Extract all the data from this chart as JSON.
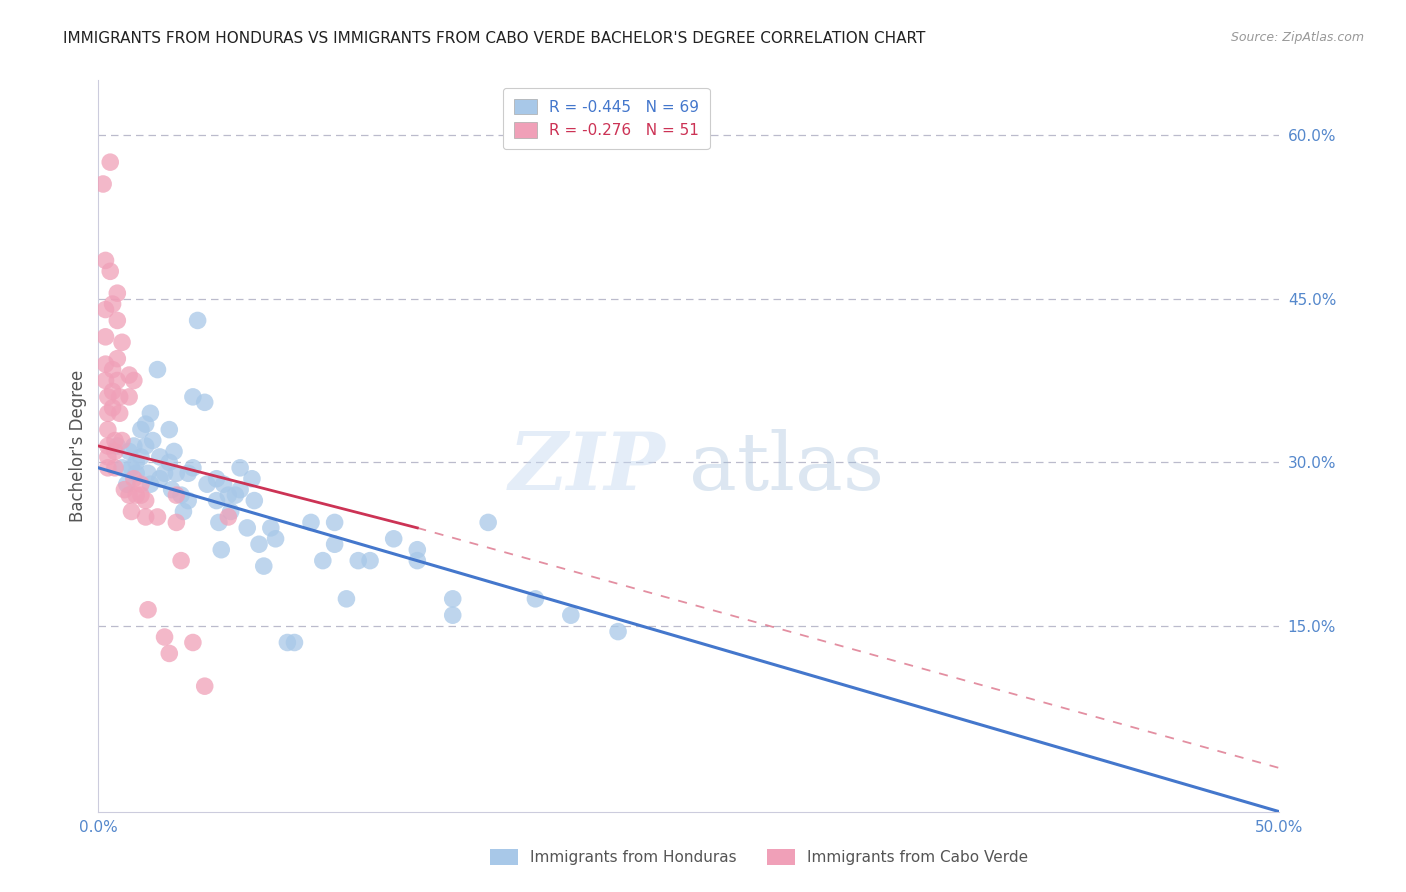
{
  "title": "IMMIGRANTS FROM HONDURAS VS IMMIGRANTS FROM CABO VERDE BACHELOR'S DEGREE CORRELATION CHART",
  "source_text": "Source: ZipAtlas.com",
  "ylabel": "Bachelor's Degree",
  "right_yticks": [
    "60.0%",
    "45.0%",
    "30.0%",
    "15.0%"
  ],
  "right_ytick_vals": [
    0.6,
    0.45,
    0.3,
    0.15
  ],
  "xlim": [
    0.0,
    0.5
  ],
  "ylim": [
    -0.02,
    0.65
  ],
  "legend_blue_r": "-0.445",
  "legend_blue_n": "69",
  "legend_pink_r": "-0.276",
  "legend_pink_n": "51",
  "blue_color": "#A8C8E8",
  "pink_color": "#F0A0B8",
  "blue_line_color": "#4477CC",
  "pink_line_color": "#CC3355",
  "blue_line": {
    "x0": 0.0,
    "y0": 0.295,
    "x1": 0.5,
    "y1": -0.02
  },
  "pink_line_solid": {
    "x0": 0.0,
    "y0": 0.315,
    "x1": 0.135,
    "y1": 0.24
  },
  "pink_line_dash": {
    "x0": 0.135,
    "y0": 0.24,
    "x1": 0.5,
    "y1": 0.02
  },
  "blue_scatter": [
    [
      0.008,
      0.315
    ],
    [
      0.01,
      0.295
    ],
    [
      0.012,
      0.28
    ],
    [
      0.013,
      0.31
    ],
    [
      0.014,
      0.295
    ],
    [
      0.015,
      0.315
    ],
    [
      0.016,
      0.3
    ],
    [
      0.016,
      0.29
    ],
    [
      0.018,
      0.33
    ],
    [
      0.018,
      0.305
    ],
    [
      0.02,
      0.335
    ],
    [
      0.02,
      0.315
    ],
    [
      0.021,
      0.29
    ],
    [
      0.022,
      0.28
    ],
    [
      0.022,
      0.345
    ],
    [
      0.023,
      0.32
    ],
    [
      0.025,
      0.385
    ],
    [
      0.026,
      0.305
    ],
    [
      0.026,
      0.285
    ],
    [
      0.028,
      0.29
    ],
    [
      0.03,
      0.33
    ],
    [
      0.03,
      0.3
    ],
    [
      0.031,
      0.275
    ],
    [
      0.032,
      0.31
    ],
    [
      0.033,
      0.29
    ],
    [
      0.035,
      0.27
    ],
    [
      0.036,
      0.255
    ],
    [
      0.038,
      0.29
    ],
    [
      0.038,
      0.265
    ],
    [
      0.04,
      0.36
    ],
    [
      0.04,
      0.295
    ],
    [
      0.042,
      0.43
    ],
    [
      0.045,
      0.355
    ],
    [
      0.046,
      0.28
    ],
    [
      0.05,
      0.285
    ],
    [
      0.05,
      0.265
    ],
    [
      0.051,
      0.245
    ],
    [
      0.052,
      0.22
    ],
    [
      0.053,
      0.28
    ],
    [
      0.055,
      0.27
    ],
    [
      0.056,
      0.255
    ],
    [
      0.058,
      0.27
    ],
    [
      0.06,
      0.295
    ],
    [
      0.06,
      0.275
    ],
    [
      0.063,
      0.24
    ],
    [
      0.065,
      0.285
    ],
    [
      0.066,
      0.265
    ],
    [
      0.068,
      0.225
    ],
    [
      0.07,
      0.205
    ],
    [
      0.073,
      0.24
    ],
    [
      0.075,
      0.23
    ],
    [
      0.08,
      0.135
    ],
    [
      0.083,
      0.135
    ],
    [
      0.09,
      0.245
    ],
    [
      0.095,
      0.21
    ],
    [
      0.1,
      0.245
    ],
    [
      0.1,
      0.225
    ],
    [
      0.105,
      0.175
    ],
    [
      0.11,
      0.21
    ],
    [
      0.115,
      0.21
    ],
    [
      0.125,
      0.23
    ],
    [
      0.135,
      0.22
    ],
    [
      0.135,
      0.21
    ],
    [
      0.15,
      0.175
    ],
    [
      0.15,
      0.16
    ],
    [
      0.165,
      0.245
    ],
    [
      0.185,
      0.175
    ],
    [
      0.2,
      0.16
    ],
    [
      0.22,
      0.145
    ]
  ],
  "pink_scatter": [
    [
      0.002,
      0.555
    ],
    [
      0.003,
      0.485
    ],
    [
      0.003,
      0.44
    ],
    [
      0.003,
      0.415
    ],
    [
      0.003,
      0.39
    ],
    [
      0.003,
      0.375
    ],
    [
      0.004,
      0.36
    ],
    [
      0.004,
      0.345
    ],
    [
      0.004,
      0.33
    ],
    [
      0.004,
      0.315
    ],
    [
      0.004,
      0.305
    ],
    [
      0.004,
      0.295
    ],
    [
      0.005,
      0.575
    ],
    [
      0.005,
      0.475
    ],
    [
      0.006,
      0.445
    ],
    [
      0.006,
      0.385
    ],
    [
      0.006,
      0.365
    ],
    [
      0.006,
      0.35
    ],
    [
      0.007,
      0.32
    ],
    [
      0.007,
      0.31
    ],
    [
      0.007,
      0.295
    ],
    [
      0.008,
      0.455
    ],
    [
      0.008,
      0.43
    ],
    [
      0.008,
      0.395
    ],
    [
      0.008,
      0.375
    ],
    [
      0.009,
      0.36
    ],
    [
      0.009,
      0.345
    ],
    [
      0.01,
      0.41
    ],
    [
      0.01,
      0.32
    ],
    [
      0.011,
      0.275
    ],
    [
      0.013,
      0.38
    ],
    [
      0.013,
      0.36
    ],
    [
      0.013,
      0.27
    ],
    [
      0.014,
      0.255
    ],
    [
      0.015,
      0.375
    ],
    [
      0.015,
      0.285
    ],
    [
      0.016,
      0.27
    ],
    [
      0.018,
      0.28
    ],
    [
      0.018,
      0.27
    ],
    [
      0.02,
      0.265
    ],
    [
      0.02,
      0.25
    ],
    [
      0.021,
      0.165
    ],
    [
      0.025,
      0.25
    ],
    [
      0.028,
      0.14
    ],
    [
      0.03,
      0.125
    ],
    [
      0.033,
      0.27
    ],
    [
      0.033,
      0.245
    ],
    [
      0.035,
      0.21
    ],
    [
      0.04,
      0.135
    ],
    [
      0.045,
      0.095
    ],
    [
      0.055,
      0.25
    ]
  ],
  "title_fontsize": 11,
  "source_fontsize": 9,
  "axis_color": "#5588CC",
  "grid_color": "#BBBBCC",
  "background_color": "#FFFFFF"
}
